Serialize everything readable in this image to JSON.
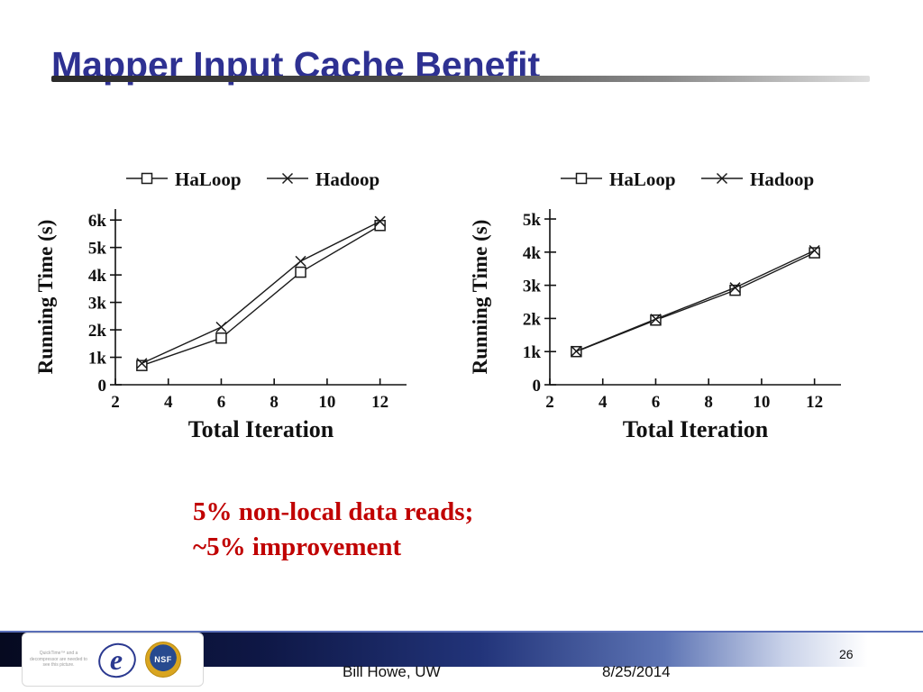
{
  "slide": {
    "title": "Mapper Input Cache Benefit",
    "title_color": "#2e3192",
    "note_line1": "5% non-local data reads;",
    "note_line2": "~5% improvement",
    "note_color": "#c00000"
  },
  "footer": {
    "author": "Bill Howe, UW",
    "date": "8/25/2014",
    "page_number": "26",
    "quicktime_placeholder": "QuickTime™ and a decompressor are needed to see this picture.",
    "escience_letter": "e",
    "nsf_label": "NSF"
  },
  "chart_data": [
    {
      "type": "line",
      "title": "",
      "xlabel": "Total  Iteration",
      "ylabel": "Running Time (s)",
      "legend_position": "top",
      "grid": false,
      "x": [
        3,
        6,
        9,
        12
      ],
      "series": [
        {
          "name": "HaLoop",
          "marker": "square",
          "values": [
            700,
            1700,
            4100,
            5800
          ]
        },
        {
          "name": "Hadoop",
          "marker": "x",
          "values": [
            780,
            2100,
            4500,
            5950
          ]
        }
      ],
      "xlim": [
        2,
        13
      ],
      "ylim": [
        0,
        6400
      ],
      "x_ticks": [
        2,
        4,
        6,
        8,
        10,
        12
      ],
      "y_ticks": [
        0,
        1000,
        2000,
        3000,
        4000,
        5000,
        6000
      ],
      "y_tick_labels": [
        "0",
        "1k",
        "2k",
        "3k",
        "4k",
        "5k",
        "6k"
      ]
    },
    {
      "type": "line",
      "title": "",
      "xlabel": "Total  Iteration",
      "ylabel": "Running Time (s)",
      "legend_position": "top",
      "grid": false,
      "x": [
        3,
        6,
        9,
        12
      ],
      "series": [
        {
          "name": "HaLoop",
          "marker": "square",
          "values": [
            1000,
            1950,
            2850,
            3980
          ]
        },
        {
          "name": "Hadoop",
          "marker": "x",
          "values": [
            1010,
            1980,
            2930,
            4050
          ]
        }
      ],
      "xlim": [
        2,
        13
      ],
      "ylim": [
        0,
        5300
      ],
      "x_ticks": [
        2,
        4,
        6,
        8,
        10,
        12
      ],
      "y_ticks": [
        0,
        1000,
        2000,
        3000,
        4000,
        5000
      ],
      "y_tick_labels": [
        "0",
        "1k",
        "2k",
        "3k",
        "4k",
        "5k"
      ]
    }
  ]
}
